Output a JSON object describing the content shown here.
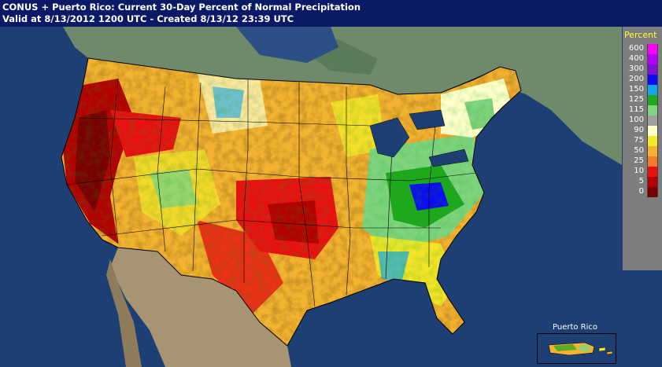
{
  "header": {
    "title_line": "CONUS + Puerto Rico: Current 30-Day Percent of Normal Precipitation",
    "valid_line": "Valid at 8/13/2012 1200 UTC - Created 8/13/12 23:39 UTC"
  },
  "legend": {
    "title": "Percent",
    "entries": [
      {
        "label": "600",
        "color": "#ff00ff"
      },
      {
        "label": "400",
        "color": "#b400ff"
      },
      {
        "label": "300",
        "color": "#7f10d6"
      },
      {
        "label": "200",
        "color": "#0c0cf0"
      },
      {
        "label": "150",
        "color": "#11a6ea"
      },
      {
        "label": "125",
        "color": "#1ea81e"
      },
      {
        "label": "115",
        "color": "#7fd47f"
      },
      {
        "label": "100",
        "color": "#a0a0a0"
      },
      {
        "label": "90",
        "color": "#ffffcc"
      },
      {
        "label": "75",
        "color": "#f2ea28"
      },
      {
        "label": "50",
        "color": "#f2b430"
      },
      {
        "label": "25",
        "color": "#f27a28"
      },
      {
        "label": "10",
        "color": "#e81010"
      },
      {
        "label": "5",
        "color": "#b40000"
      },
      {
        "label": "0",
        "color": "#7a0000"
      }
    ]
  },
  "inset": {
    "title": "Puerto Rico"
  },
  "colors": {
    "ocean": "#1d3f74",
    "canada": "#6f8a6a",
    "mexico": "#a79473",
    "header_bg": "#0a1a66"
  }
}
